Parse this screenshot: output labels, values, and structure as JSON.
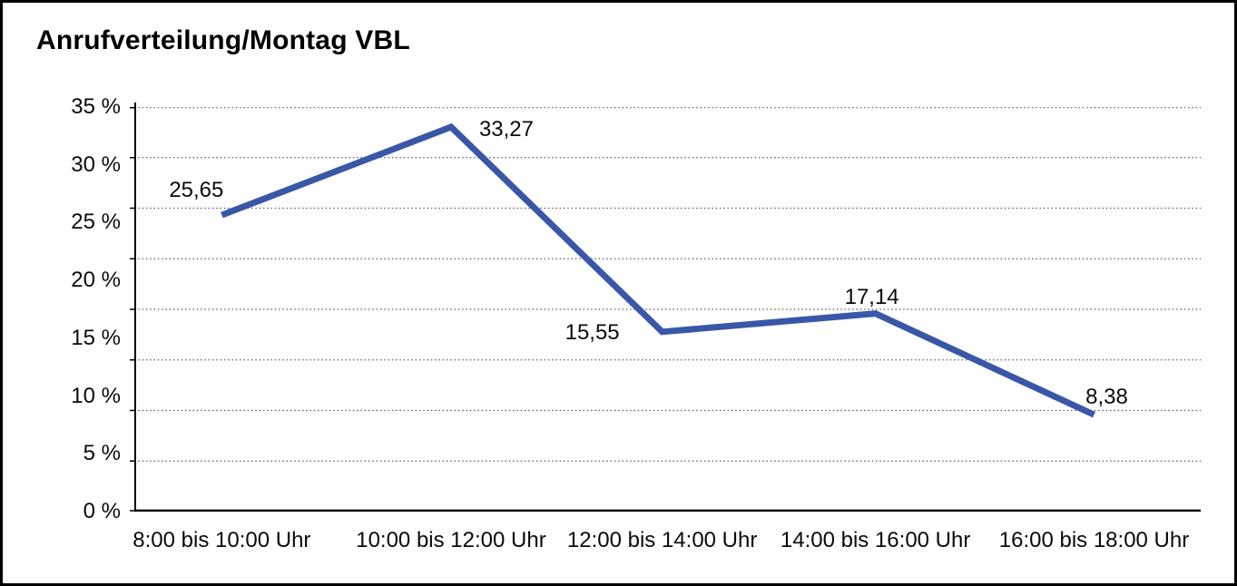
{
  "chart_data": {
    "type": "line",
    "title": "Anrufverteilung/Montag VBL",
    "categories": [
      "8:00 bis 10:00 Uhr",
      "10:00 bis 12:00 Uhr",
      "12:00 bis 14:00 Uhr",
      "14:00 bis 16:00 Uhr",
      "16:00 bis 18:00 Uhr"
    ],
    "values": [
      25.65,
      33.27,
      15.55,
      17.14,
      8.38
    ],
    "value_labels": [
      "25,65",
      "33,27",
      "15,55",
      "17,14",
      "8,38"
    ],
    "y_ticks": [
      "35 %",
      "30 %",
      "25 %",
      "20 %",
      "15 %",
      "10 %",
      "5 %",
      "0 %"
    ],
    "ylim": [
      0,
      35
    ],
    "xlabel": "",
    "ylabel": "",
    "legend": "none",
    "grid": "horizontal-dotted",
    "line_color": "#3A57A7",
    "axis_color": "#000000",
    "gridline_color": "#5a5a5a",
    "text_color": "#0a0a0a"
  }
}
